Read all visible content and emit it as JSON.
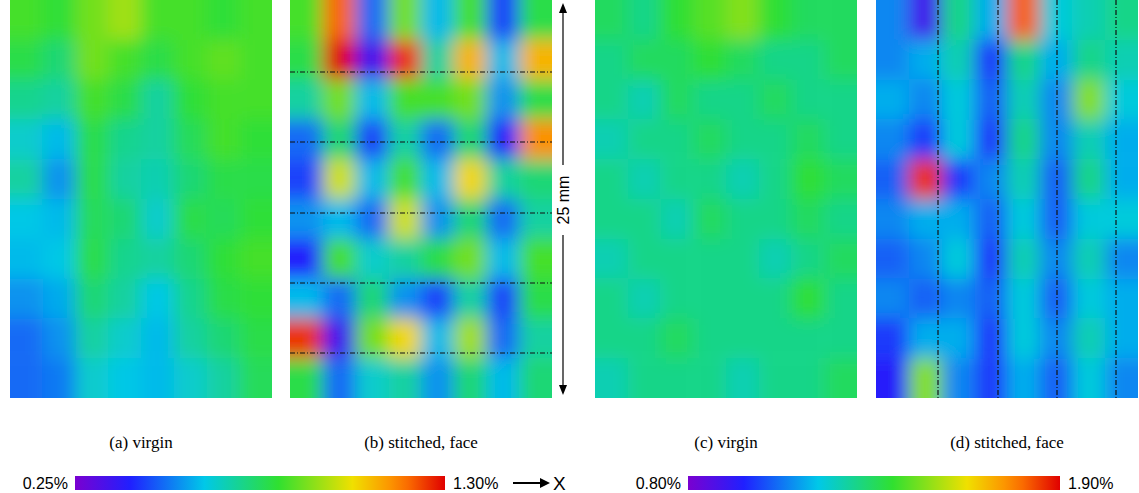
{
  "chart_data": [
    {
      "type": "heatmap",
      "color_range": [
        0.25,
        1.3
      ],
      "color_ticks": [
        {
          "value": 0.25,
          "label": "0.25%"
        },
        {
          "value": 1.3,
          "label": "1.30%"
        }
      ],
      "panels": [
        {
          "title": "(a) virgin",
          "cells": [
            [
              0.85,
              0.82,
              0.9,
              0.95,
              0.85,
              0.85,
              0.82,
              0.85
            ],
            [
              0.8,
              0.75,
              0.9,
              0.85,
              0.8,
              0.85,
              0.88,
              0.85
            ],
            [
              0.72,
              0.7,
              0.85,
              0.8,
              0.7,
              0.82,
              0.85,
              0.85
            ],
            [
              0.65,
              0.6,
              0.8,
              0.72,
              0.7,
              0.78,
              0.85,
              0.82
            ],
            [
              0.7,
              0.55,
              0.8,
              0.7,
              0.68,
              0.75,
              0.8,
              0.8
            ],
            [
              0.62,
              0.6,
              0.78,
              0.75,
              0.65,
              0.8,
              0.78,
              0.82
            ],
            [
              0.6,
              0.62,
              0.8,
              0.72,
              0.7,
              0.75,
              0.82,
              0.85
            ],
            [
              0.55,
              0.58,
              0.75,
              0.7,
              0.62,
              0.72,
              0.8,
              0.82
            ],
            [
              0.5,
              0.55,
              0.7,
              0.65,
              0.6,
              0.7,
              0.75,
              0.8
            ],
            [
              0.5,
              0.52,
              0.65,
              0.62,
              0.6,
              0.65,
              0.7,
              0.78
            ]
          ]
        },
        {
          "title": "(b) stitched, face",
          "cells": [
            [
              0.85,
              1.2,
              0.5,
              0.9,
              0.6,
              0.85,
              0.45,
              0.8
            ],
            [
              0.8,
              1.3,
              0.35,
              1.25,
              0.7,
              1.1,
              0.6,
              1.1
            ],
            [
              0.7,
              0.9,
              0.6,
              0.85,
              0.85,
              0.9,
              0.55,
              0.8
            ],
            [
              0.5,
              0.75,
              0.45,
              0.7,
              0.5,
              0.75,
              0.4,
              1.15
            ],
            [
              0.45,
              1.0,
              0.6,
              0.85,
              0.6,
              1.05,
              0.7,
              0.75
            ],
            [
              0.55,
              0.6,
              0.5,
              1.0,
              0.55,
              0.75,
              0.5,
              0.7
            ],
            [
              0.4,
              0.85,
              0.65,
              0.7,
              0.8,
              0.9,
              0.6,
              0.85
            ],
            [
              0.6,
              0.5,
              0.75,
              0.55,
              0.45,
              0.7,
              0.45,
              0.8
            ],
            [
              1.25,
              0.35,
              0.9,
              1.05,
              0.6,
              0.95,
              0.5,
              0.7
            ],
            [
              0.8,
              0.5,
              0.65,
              0.7,
              0.55,
              0.75,
              0.6,
              0.75
            ]
          ]
        }
      ]
    },
    {
      "type": "heatmap",
      "color_range": [
        0.8,
        1.9
      ],
      "color_ticks": [
        {
          "value": 0.8,
          "label": "0.80%"
        },
        {
          "value": 1.9,
          "label": "1.90%"
        }
      ],
      "panels": [
        {
          "title": "(c) virgin",
          "cells": [
            [
              1.35,
              1.3,
              1.4,
              1.45,
              1.5,
              1.4,
              1.35,
              1.35
            ],
            [
              1.3,
              1.35,
              1.35,
              1.4,
              1.35,
              1.3,
              1.3,
              1.35
            ],
            [
              1.3,
              1.25,
              1.35,
              1.3,
              1.3,
              1.35,
              1.3,
              1.3
            ],
            [
              1.25,
              1.3,
              1.3,
              1.35,
              1.3,
              1.3,
              1.35,
              1.3
            ],
            [
              1.3,
              1.25,
              1.3,
              1.3,
              1.25,
              1.3,
              1.4,
              1.35
            ],
            [
              1.3,
              1.3,
              1.25,
              1.35,
              1.3,
              1.3,
              1.35,
              1.3
            ],
            [
              1.25,
              1.3,
              1.3,
              1.3,
              1.3,
              1.25,
              1.3,
              1.35
            ],
            [
              1.3,
              1.25,
              1.3,
              1.3,
              1.3,
              1.3,
              1.4,
              1.3
            ],
            [
              1.3,
              1.3,
              1.35,
              1.3,
              1.3,
              1.3,
              1.3,
              1.3
            ],
            [
              1.25,
              1.3,
              1.3,
              1.3,
              1.25,
              1.3,
              1.3,
              1.35
            ]
          ]
        },
        {
          "title": "(d) stitched, face",
          "cells": [
            [
              1.1,
              0.9,
              1.3,
              1.15,
              1.8,
              1.2,
              1.25,
              1.3
            ],
            [
              1.1,
              1.15,
              1.25,
              1.0,
              1.3,
              1.15,
              1.3,
              1.25
            ],
            [
              1.15,
              1.1,
              1.2,
              1.05,
              1.25,
              1.1,
              1.5,
              1.2
            ],
            [
              1.1,
              1.0,
              1.2,
              1.0,
              1.3,
              1.1,
              1.25,
              1.15
            ],
            [
              1.05,
              1.85,
              1.0,
              1.1,
              1.25,
              1.05,
              1.3,
              1.15
            ],
            [
              1.1,
              1.15,
              1.15,
              1.05,
              1.2,
              1.05,
              1.2,
              1.2
            ],
            [
              1.05,
              1.1,
              1.2,
              1.0,
              1.25,
              1.1,
              1.25,
              1.1
            ],
            [
              1.1,
              1.05,
              1.1,
              1.05,
              1.2,
              1.05,
              1.2,
              1.15
            ],
            [
              1.0,
              1.15,
              1.15,
              1.0,
              1.2,
              1.1,
              1.25,
              1.15
            ],
            [
              0.95,
              1.5,
              1.1,
              1.0,
              1.15,
              1.05,
              1.2,
              1.1
            ]
          ]
        }
      ]
    }
  ],
  "annotation": "25 mm",
  "x_label": "X"
}
